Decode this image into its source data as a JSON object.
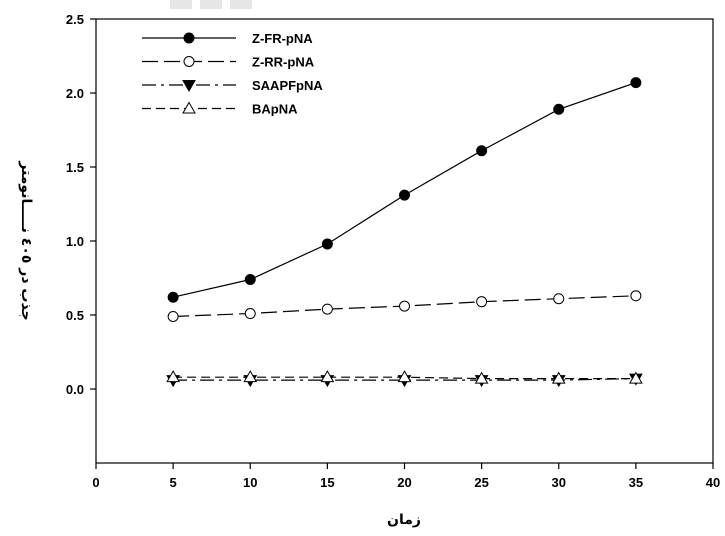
{
  "chart_data": {
    "type": "line",
    "title": "",
    "xlabel": "زمان",
    "ylabel": "جذب در ٤٠٥ نـــــانومتر",
    "xlim": [
      0,
      40
    ],
    "ylim": [
      -0.5,
      2.5
    ],
    "x_ticks": [
      0,
      5,
      10,
      15,
      20,
      25,
      30,
      35,
      40
    ],
    "y_ticks": [
      0.0,
      0.5,
      1.0,
      1.5,
      2.0,
      2.5
    ],
    "y_tick_labels": [
      "0.0",
      "0.5",
      "1.0",
      "1.5",
      "2.0",
      "2.5"
    ],
    "grid": false,
    "legend_position": "top-left",
    "x": [
      5,
      10,
      15,
      20,
      25,
      30,
      35
    ],
    "series": [
      {
        "name": "Z-FR-pNA",
        "marker": "filled-circle",
        "line": "solid",
        "values": [
          0.62,
          0.74,
          0.98,
          1.31,
          1.61,
          1.89,
          2.07
        ]
      },
      {
        "name": "Z-RR-pNA",
        "marker": "open-circle",
        "line": "long-dash",
        "values": [
          0.49,
          0.51,
          0.54,
          0.56,
          0.59,
          0.61,
          0.63
        ]
      },
      {
        "name": "SAAPFpNA",
        "marker": "filled-triangle-down",
        "line": "dash-dot",
        "values": [
          0.06,
          0.06,
          0.06,
          0.06,
          0.06,
          0.06,
          0.07
        ]
      },
      {
        "name": "BApNA",
        "marker": "open-triangle-up",
        "line": "dash",
        "values": [
          0.08,
          0.08,
          0.08,
          0.08,
          0.07,
          0.07,
          0.07
        ]
      }
    ]
  }
}
